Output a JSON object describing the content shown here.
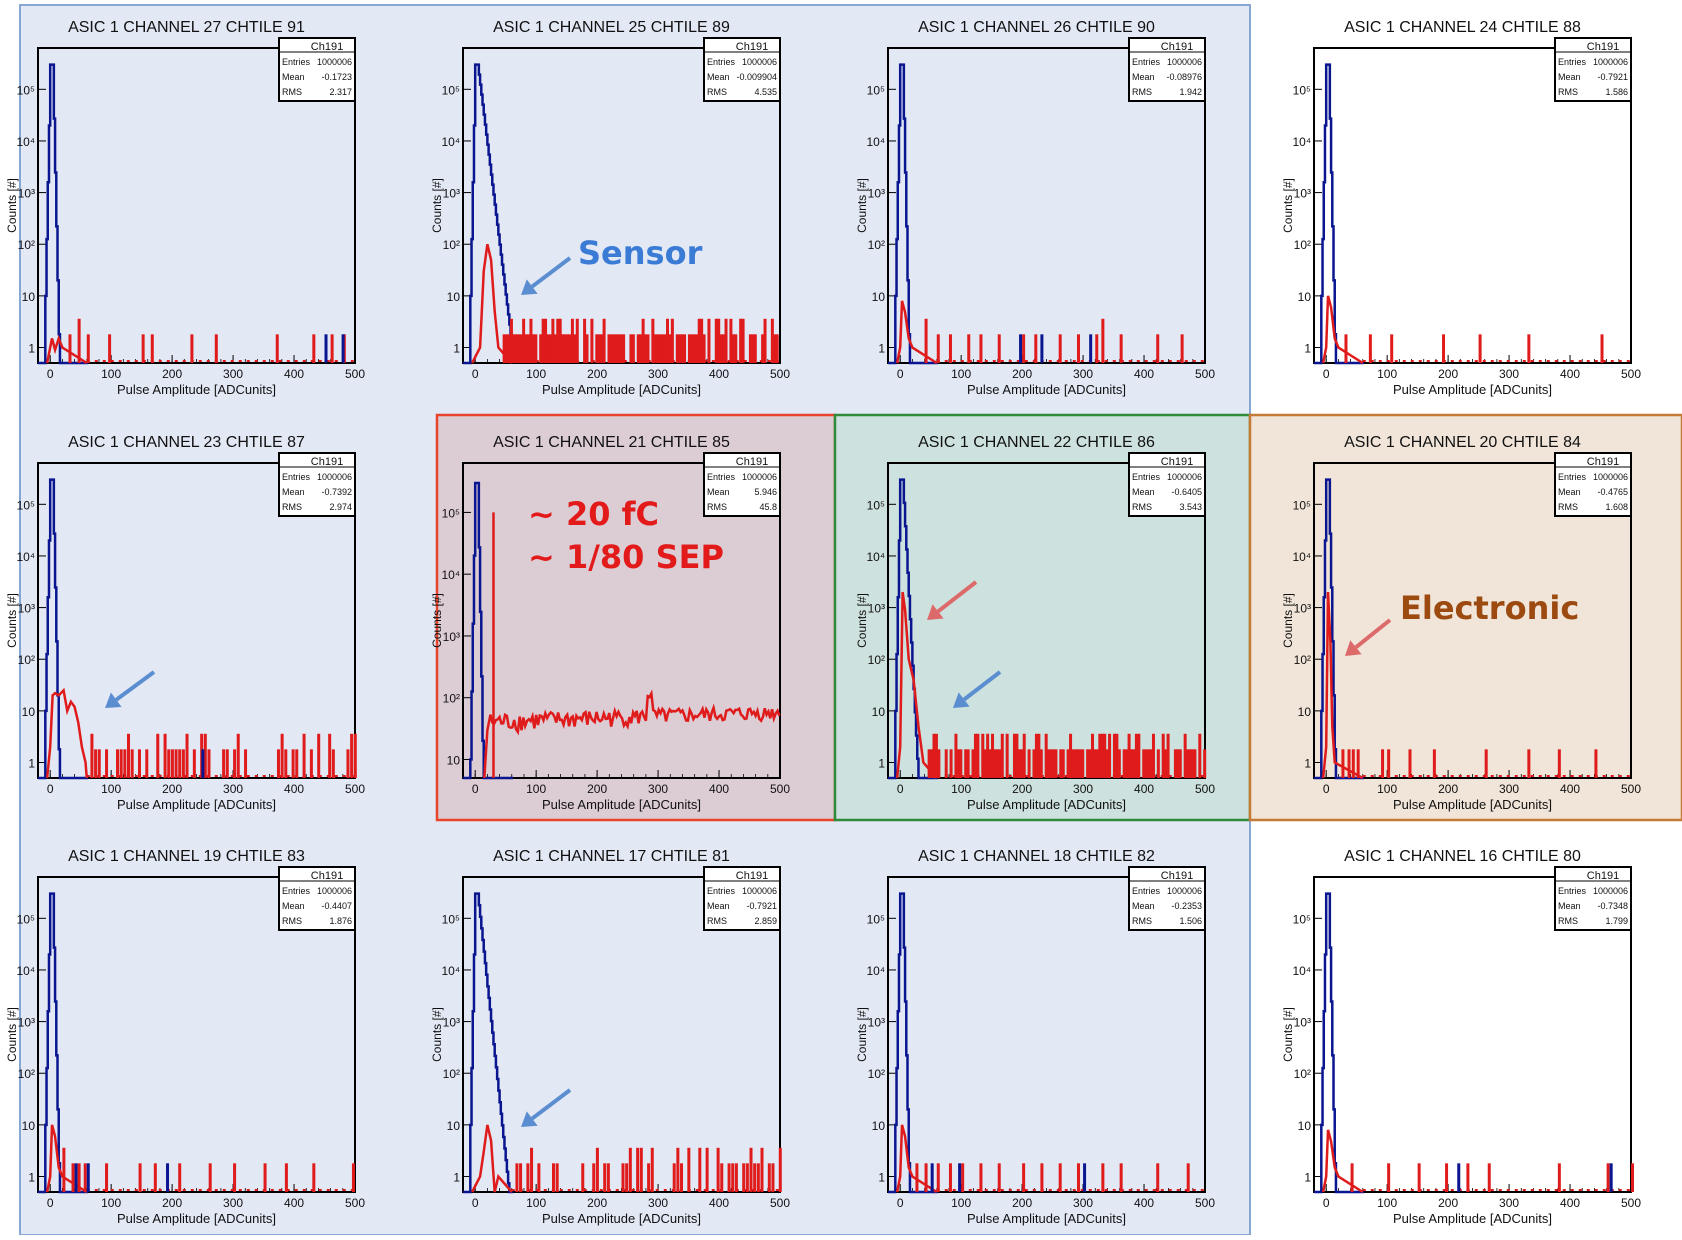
{
  "colors": {
    "blue_region": "#e3e8f5",
    "blue_border": "#86a6d3",
    "red_region": "#dcccd4",
    "red_border": "#e8432b",
    "green_region": "#cde1de",
    "green_border": "#2e8b3a",
    "orange_region": "#f0e5d8",
    "orange_border": "#c57a35",
    "hist_blue": "#0a1690",
    "hist_red": "#df1b1b",
    "arrow_blue": "#5a8ed0",
    "arrow_red": "#dd6a6a",
    "sensor_text": "#3a7bd5",
    "fc_text": "#e21a1a",
    "electronic_text": "#9c4a10"
  },
  "regions": [
    {
      "name": "blue",
      "fill_key": "blue_region",
      "stroke_key": "blue_border"
    },
    {
      "name": "red",
      "fill_key": "red_region",
      "stroke_key": "red_border"
    },
    {
      "name": "green",
      "fill_key": "green_region",
      "stroke_key": "green_border"
    },
    {
      "name": "orange",
      "fill_key": "orange_region",
      "stroke_key": "orange_border"
    }
  ],
  "annotations": {
    "sensor": "Sensor",
    "fc_line1": "~ 20 fC",
    "fc_line2": "~ 1/80 SEP",
    "electronic": "Electronic"
  },
  "chart_data": [
    {
      "type": "bar",
      "title": "ASIC 1 CHANNEL 27 CHTILE 91",
      "xlabel": "Pulse Amplitude [ADCunits]",
      "ylabel": "Counts [#]",
      "xlim": [
        -20,
        500
      ],
      "y_scale": "log",
      "yticks": [
        "1",
        "10",
        "10²",
        "10³",
        "10⁴",
        "10⁵"
      ],
      "xticks": [
        "0",
        "100",
        "200",
        "300",
        "400",
        "500"
      ],
      "stats": {
        "name": "Ch191",
        "entries_label": "Entries",
        "entries": "1000006",
        "mean": "-0.1723",
        "rms": "2.317"
      },
      "red_profile": "noise-sparse",
      "red_peak": [
        25,
        1.5
      ],
      "red_noise": [
        [
          30,
          1
        ],
        [
          45,
          2
        ],
        [
          60,
          1
        ],
        [
          95,
          1
        ],
        [
          150,
          1
        ],
        [
          165,
          1
        ],
        [
          230,
          1
        ],
        [
          270,
          1
        ],
        [
          370,
          1
        ],
        [
          430,
          1
        ],
        [
          460,
          1
        ],
        [
          480,
          1
        ]
      ],
      "blue_extra": [
        [
          450,
          1
        ],
        [
          478,
          1
        ]
      ]
    },
    {
      "type": "bar",
      "title": "ASIC 1 CHANNEL 25 CHTILE 89",
      "xlabel": "Pulse Amplitude [ADCunits]",
      "ylabel": "Counts [#]",
      "xlim": [
        -20,
        500
      ],
      "y_scale": "log",
      "yticks": [
        "1",
        "10",
        "10²",
        "10³",
        "10⁴",
        "10⁵"
      ],
      "xticks": [
        "0",
        "100",
        "200",
        "300",
        "400",
        "500"
      ],
      "stats": {
        "name": "Ch191",
        "entries_label": "Entries",
        "entries": "1000006",
        "mean": "-0.009904",
        "rms": "4.535"
      },
      "red_profile": "sensor-peak",
      "red_peak": [
        20,
        100
      ],
      "blue_tail": [
        35,
        300
      ],
      "red_noise_dense": true,
      "blue_extra": []
    },
    {
      "type": "bar",
      "title": "ASIC 1 CHANNEL 26 CHTILE 90",
      "xlabel": "Pulse Amplitude [ADCunits]",
      "ylabel": "Counts [#]",
      "xlim": [
        -20,
        500
      ],
      "y_scale": "log",
      "yticks": [
        "1",
        "10",
        "10²",
        "10³",
        "10⁴",
        "10⁵"
      ],
      "xticks": [
        "0",
        "100",
        "200",
        "300",
        "400",
        "500"
      ],
      "stats": {
        "name": "Ch191",
        "entries_label": "Entries",
        "entries": "1000006",
        "mean": "-0.08976",
        "rms": "1.942"
      },
      "red_profile": "noise-medium",
      "red_peak": [
        10,
        8
      ],
      "red_noise": [
        [
          40,
          2
        ],
        [
          60,
          1
        ],
        [
          80,
          1
        ],
        [
          110,
          1
        ],
        [
          130,
          1
        ],
        [
          160,
          1
        ],
        [
          200,
          1
        ],
        [
          220,
          1
        ],
        [
          260,
          1
        ],
        [
          290,
          1
        ],
        [
          320,
          1
        ],
        [
          330,
          2
        ],
        [
          360,
          1
        ],
        [
          420,
          1
        ],
        [
          460,
          1
        ]
      ],
      "blue_extra": [
        [
          195,
          1
        ],
        [
          230,
          1
        ],
        [
          310,
          1
        ]
      ]
    },
    {
      "type": "bar",
      "title": "ASIC 1 CHANNEL 24 CHTILE 88",
      "xlabel": "Pulse Amplitude [ADCunits]",
      "ylabel": "Counts [#]",
      "xlim": [
        -20,
        500
      ],
      "y_scale": "log",
      "yticks": [
        "1",
        "10",
        "10²",
        "10³",
        "10⁴",
        "10⁵"
      ],
      "xticks": [
        "0",
        "100",
        "200",
        "300",
        "400",
        "500"
      ],
      "stats": {
        "name": "Ch191",
        "entries_label": "Entries",
        "entries": "1000006",
        "mean": "-0.7921",
        "rms": "1.586"
      },
      "red_profile": "noise-low",
      "red_peak": [
        5,
        10
      ],
      "red_noise": [
        [
          30,
          1
        ],
        [
          70,
          1
        ],
        [
          105,
          1
        ],
        [
          190,
          1
        ],
        [
          250,
          1
        ],
        [
          330,
          1
        ],
        [
          450,
          1
        ]
      ],
      "blue_extra": []
    },
    {
      "type": "bar",
      "title": "ASIC 1 CHANNEL 23 CHTILE 87",
      "xlabel": "Pulse Amplitude [ADCunits]",
      "ylabel": "Counts [#]",
      "xlim": [
        -20,
        500
      ],
      "y_scale": "log",
      "yticks": [
        "1",
        "10",
        "10²",
        "10³",
        "10⁴",
        "10⁵"
      ],
      "xticks": [
        "0",
        "100",
        "200",
        "300",
        "400",
        "500"
      ],
      "stats": {
        "name": "Ch191",
        "entries_label": "Entries",
        "entries": "1000006",
        "mean": "-0.7392",
        "rms": "2.974"
      },
      "red_profile": "double-hump",
      "red_peak": [
        10,
        20
      ],
      "red_noise_medium": true,
      "blue_extra": [
        [
          248,
          1
        ]
      ]
    },
    {
      "type": "bar",
      "title": "ASIC 1 CHANNEL 21 CHTILE 85",
      "xlabel": "Pulse Amplitude [ADCunits]",
      "ylabel": "Counts [#]",
      "xlim": [
        -20,
        500
      ],
      "y_scale": "log",
      "yticks": [
        "10",
        "10²",
        "10³",
        "10⁴",
        "10⁵"
      ],
      "xticks": [
        "0",
        "100",
        "200",
        "300",
        "400",
        "500"
      ],
      "stats": {
        "name": "Ch191",
        "entries_label": "Entries",
        "entries": "1000006",
        "mean": "5.946",
        "rms": "45.8"
      },
      "red_profile": "flat-high",
      "red_peak": [
        30,
        100000
      ],
      "blue_extra": []
    },
    {
      "type": "bar",
      "title": "ASIC 1 CHANNEL 22 CHTILE 86",
      "xlabel": "Pulse Amplitude [ADCunits]",
      "ylabel": "Counts [#]",
      "xlim": [
        -20,
        500
      ],
      "y_scale": "log",
      "yticks": [
        "1",
        "10",
        "10²",
        "10³",
        "10⁴",
        "10⁵"
      ],
      "xticks": [
        "0",
        "100",
        "200",
        "300",
        "400",
        "500"
      ],
      "stats": {
        "name": "Ch191",
        "entries_label": "Entries",
        "entries": "1000006",
        "mean": "-0.6405",
        "rms": "3.543"
      },
      "red_profile": "sensor-electronic",
      "red_peak": [
        5,
        2000
      ],
      "blue_tail": [
        15,
        1000
      ],
      "red_noise_dense": true,
      "blue_extra": []
    },
    {
      "type": "bar",
      "title": "ASIC 1 CHANNEL 20 CHTILE 84",
      "xlabel": "Pulse Amplitude [ADCunits]",
      "ylabel": "Counts [#]",
      "xlim": [
        -20,
        500
      ],
      "y_scale": "log",
      "yticks": [
        "1",
        "10",
        "10²",
        "10³",
        "10⁴",
        "10⁵"
      ],
      "xticks": [
        "0",
        "100",
        "200",
        "300",
        "400",
        "500"
      ],
      "stats": {
        "name": "Ch191",
        "entries_label": "Entries",
        "entries": "1000006",
        "mean": "-0.4765",
        "rms": "1.608"
      },
      "red_profile": "electronic",
      "red_peak": [
        5,
        2000
      ],
      "red_noise": [
        [
          25,
          1
        ],
        [
          35,
          1
        ],
        [
          42,
          1
        ],
        [
          50,
          1
        ],
        [
          90,
          1
        ],
        [
          100,
          1
        ],
        [
          135,
          1
        ],
        [
          175,
          1
        ],
        [
          260,
          1
        ],
        [
          330,
          1
        ],
        [
          380,
          1
        ],
        [
          440,
          1
        ]
      ],
      "blue_extra": []
    },
    {
      "type": "bar",
      "title": "ASIC 1 CHANNEL 19 CHTILE 83",
      "xlabel": "Pulse Amplitude [ADCunits]",
      "ylabel": "Counts [#]",
      "xlim": [
        -20,
        500
      ],
      "y_scale": "log",
      "yticks": [
        "1",
        "10",
        "10²",
        "10³",
        "10⁴",
        "10⁵"
      ],
      "xticks": [
        "0",
        "100",
        "200",
        "300",
        "400",
        "500"
      ],
      "stats": {
        "name": "Ch191",
        "entries_label": "Entries",
        "entries": "1000006",
        "mean": "-0.4407",
        "rms": "1.876"
      },
      "red_profile": "noise-low",
      "red_peak": [
        5,
        10
      ],
      "red_noise": [
        [
          20,
          2
        ],
        [
          35,
          1
        ],
        [
          45,
          1
        ],
        [
          55,
          1
        ],
        [
          90,
          1
        ],
        [
          145,
          1
        ],
        [
          170,
          1
        ],
        [
          210,
          1
        ],
        [
          260,
          1
        ],
        [
          300,
          1
        ],
        [
          350,
          1
        ],
        [
          385,
          1
        ],
        [
          430,
          1
        ],
        [
          495,
          1
        ]
      ],
      "blue_extra": [
        [
          40,
          1
        ],
        [
          60,
          1
        ],
        [
          190,
          1
        ]
      ]
    },
    {
      "type": "bar",
      "title": "ASIC 1 CHANNEL 17 CHTILE 81",
      "xlabel": "Pulse Amplitude [ADCunits]",
      "ylabel": "Counts [#]",
      "xlim": [
        -20,
        500
      ],
      "y_scale": "log",
      "yticks": [
        "1",
        "10",
        "10²",
        "10³",
        "10⁴",
        "10⁵"
      ],
      "xticks": [
        "0",
        "100",
        "200",
        "300",
        "400",
        "500"
      ],
      "stats": {
        "name": "Ch191",
        "entries_label": "Entries",
        "entries": "1000006",
        "mean": "-0.7921",
        "rms": "2.859"
      },
      "red_profile": "sensor-peak-small",
      "red_peak": [
        20,
        10
      ],
      "blue_tail": [
        35,
        100
      ],
      "red_noise_medium": true,
      "blue_extra": []
    },
    {
      "type": "bar",
      "title": "ASIC 1 CHANNEL 18 CHTILE 82",
      "xlabel": "Pulse Amplitude [ADCunits]",
      "ylabel": "Counts [#]",
      "xlim": [
        -20,
        500
      ],
      "y_scale": "log",
      "yticks": [
        "1",
        "10",
        "10²",
        "10³",
        "10⁴",
        "10⁵"
      ],
      "xticks": [
        "0",
        "100",
        "200",
        "300",
        "400",
        "500"
      ],
      "stats": {
        "name": "Ch191",
        "entries_label": "Entries",
        "entries": "1000006",
        "mean": "-0.2353",
        "rms": "1.506"
      },
      "red_profile": "noise-low",
      "red_peak": [
        5,
        10
      ],
      "red_noise": [
        [
          25,
          1
        ],
        [
          40,
          1
        ],
        [
          60,
          1
        ],
        [
          80,
          1
        ],
        [
          100,
          1
        ],
        [
          130,
          1
        ],
        [
          160,
          1
        ],
        [
          200,
          1
        ],
        [
          230,
          1
        ],
        [
          260,
          1
        ],
        [
          290,
          1
        ],
        [
          330,
          1
        ],
        [
          360,
          1
        ],
        [
          420,
          1
        ],
        [
          470,
          1
        ]
      ],
      "blue_extra": [
        [
          50,
          1
        ],
        [
          95,
          1
        ],
        [
          300,
          1
        ]
      ]
    },
    {
      "type": "bar",
      "title": "ASIC 1 CHANNEL 16 CHTILE 80",
      "xlabel": "Pulse Amplitude [ADCunits]",
      "ylabel": "Counts [#]",
      "xlim": [
        -20,
        500
      ],
      "y_scale": "log",
      "yticks": [
        "1",
        "10",
        "10²",
        "10³",
        "10⁴",
        "10⁵"
      ],
      "xticks": [
        "0",
        "100",
        "200",
        "300",
        "400",
        "500"
      ],
      "stats": {
        "name": "Ch191",
        "entries_label": "Entries",
        "entries": "1000006",
        "mean": "-0.7348",
        "rms": "1.799"
      },
      "red_profile": "noise-low",
      "red_peak": [
        5,
        8
      ],
      "red_noise": [
        [
          40,
          1
        ],
        [
          100,
          1
        ],
        [
          150,
          1
        ],
        [
          195,
          1
        ],
        [
          230,
          1
        ],
        [
          265,
          1
        ],
        [
          380,
          1
        ],
        [
          460,
          1
        ],
        [
          500,
          1
        ]
      ],
      "blue_extra": [
        [
          215,
          1
        ],
        [
          465,
          1
        ]
      ]
    }
  ]
}
